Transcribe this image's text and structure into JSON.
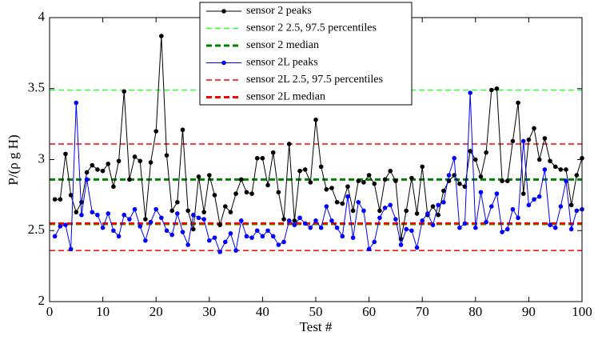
{
  "chart_data": {
    "type": "line",
    "xlabel": "Test #",
    "ylabel": "P/(ρ g H)",
    "xlim": [
      0,
      100
    ],
    "xticks": [
      0,
      10,
      20,
      30,
      40,
      50,
      60,
      70,
      80,
      90,
      100
    ],
    "ylim": [
      2,
      4
    ],
    "yticks": [
      2,
      2.5,
      3,
      3.5,
      4
    ],
    "grid": false,
    "legend": "upper center",
    "x": [
      1,
      2,
      3,
      4,
      5,
      6,
      7,
      8,
      9,
      10,
      11,
      12,
      13,
      14,
      15,
      16,
      17,
      18,
      19,
      20,
      21,
      22,
      23,
      24,
      25,
      26,
      27,
      28,
      29,
      30,
      31,
      32,
      33,
      34,
      35,
      36,
      37,
      38,
      39,
      40,
      41,
      42,
      43,
      44,
      45,
      46,
      47,
      48,
      49,
      50,
      51,
      52,
      53,
      54,
      55,
      56,
      57,
      58,
      59,
      60,
      61,
      62,
      63,
      64,
      65,
      66,
      67,
      68,
      69,
      70,
      71,
      72,
      73,
      74,
      75,
      76,
      77,
      78,
      79,
      80,
      81,
      82,
      83,
      84,
      85,
      86,
      87,
      88,
      89,
      90,
      91,
      92,
      93,
      94,
      95,
      96,
      97,
      98,
      99,
      100
    ],
    "series": [
      {
        "name": "sensor 2 peaks",
        "color": "#000000",
        "values": [
          2.72,
          2.72,
          3.04,
          2.75,
          2.63,
          2.7,
          2.91,
          2.96,
          2.93,
          2.92,
          2.97,
          2.81,
          2.99,
          3.48,
          2.86,
          3.02,
          2.99,
          2.58,
          2.98,
          3.2,
          3.87,
          3.03,
          2.64,
          2.7,
          3.21,
          2.64,
          2.51,
          2.88,
          2.63,
          2.89,
          2.75,
          2.54,
          2.67,
          2.63,
          2.76,
          2.86,
          2.77,
          2.76,
          3.01,
          3.01,
          2.82,
          3.05,
          2.77,
          2.58,
          3.11,
          2.57,
          2.92,
          2.93,
          2.84,
          3.28,
          2.95,
          2.79,
          2.8,
          2.7,
          2.69,
          2.81,
          2.64,
          2.85,
          2.84,
          2.89,
          2.83,
          2.64,
          2.86,
          2.92,
          2.85,
          2.44,
          2.64,
          2.87,
          2.62,
          2.95,
          2.61,
          2.67,
          2.61,
          2.78,
          2.85,
          2.89,
          2.83,
          2.81,
          3.06,
          3.0,
          2.88,
          3.05,
          3.49,
          3.5,
          2.85,
          2.85,
          3.13,
          3.4,
          2.76,
          3.14,
          3.22,
          3.0,
          3.15,
          2.99,
          2.95,
          2.93,
          2.93,
          2.68,
          2.89,
          3.01
        ]
      },
      {
        "name": "sensor 2L peaks",
        "color": "#0000ff",
        "values": [
          2.46,
          2.53,
          2.54,
          2.37,
          3.4,
          2.61,
          2.86,
          2.63,
          2.61,
          2.52,
          2.62,
          2.5,
          2.46,
          2.61,
          2.58,
          2.65,
          2.53,
          2.43,
          2.56,
          2.65,
          2.59,
          2.5,
          2.47,
          2.62,
          2.49,
          2.4,
          2.61,
          2.59,
          2.58,
          2.43,
          2.45,
          2.35,
          2.42,
          2.48,
          2.36,
          2.57,
          2.46,
          2.45,
          2.5,
          2.46,
          2.5,
          2.46,
          2.4,
          2.42,
          2.57,
          2.54,
          2.59,
          2.55,
          2.52,
          2.57,
          2.52,
          2.67,
          2.57,
          2.52,
          2.46,
          2.74,
          2.45,
          2.7,
          2.64,
          2.37,
          2.42,
          2.59,
          2.66,
          2.68,
          2.58,
          2.4,
          2.51,
          2.5,
          2.38,
          2.57,
          2.62,
          2.54,
          2.68,
          2.7,
          2.89,
          3.01,
          2.52,
          2.55,
          3.47,
          2.52,
          2.77,
          2.56,
          2.67,
          2.76,
          2.49,
          2.51,
          2.65,
          2.59,
          3.13,
          2.68,
          2.72,
          2.74,
          2.93,
          2.54,
          2.52,
          2.67,
          2.85,
          2.51,
          2.64,
          2.65
        ]
      }
    ],
    "hlines": [
      {
        "name": "sensor 2 2.5, 97.5 percentiles",
        "color": "#33ff33",
        "linewidth": 1.5,
        "values": [
          2.54,
          3.49
        ]
      },
      {
        "name": "sensor 2 median",
        "color": "#008000",
        "linewidth": 3,
        "values": [
          2.86
        ]
      },
      {
        "name": "sensor 2L 2.5, 97.5 percentiles",
        "color": "#ff0000",
        "linewidth": 1.5,
        "values": [
          2.36,
          3.11
        ]
      },
      {
        "name": "sensor 2L median",
        "color": "#ff0000",
        "linewidth": 3,
        "values": [
          2.55
        ]
      }
    ]
  }
}
